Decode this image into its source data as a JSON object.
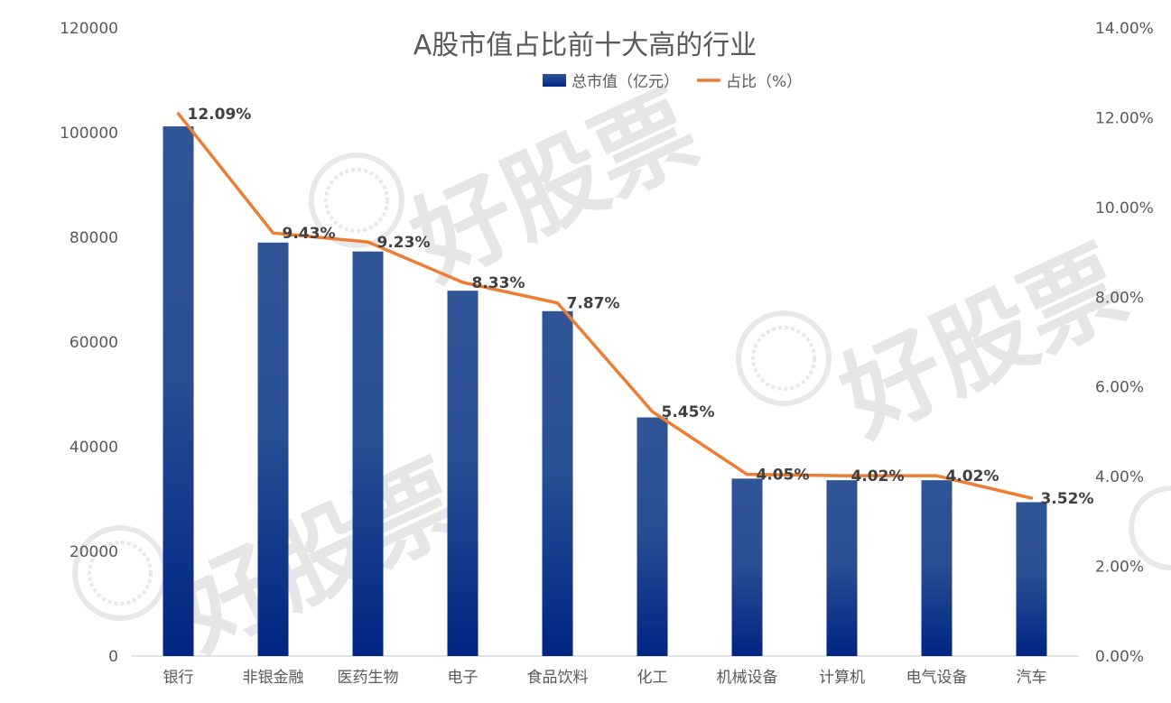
{
  "watermark": {
    "text": "好股票"
  },
  "chart_data": {
    "type": "bar",
    "title": "A股市值占比前十大高的行业",
    "categories": [
      "银行",
      "非银金融",
      "医药生物",
      "电子",
      "食品饮料",
      "化工",
      "机械设备",
      "计算机",
      "电气设备",
      "汽车"
    ],
    "series": [
      {
        "name": "总市值（亿元）",
        "type": "bar",
        "axis": "left",
        "values": [
          101200,
          79000,
          77300,
          69800,
          65900,
          45600,
          33900,
          33600,
          33600,
          29400
        ]
      },
      {
        "name": "占比（%）",
        "type": "line",
        "axis": "right",
        "values": [
          12.09,
          9.43,
          9.23,
          8.33,
          7.87,
          5.45,
          4.05,
          4.02,
          4.02,
          3.52
        ],
        "labels": [
          "12.09%",
          "9.43%",
          "9.23%",
          "8.33%",
          "7.87%",
          "5.45%",
          "4.05%",
          "4.02%",
          "4.02%",
          "3.52%"
        ]
      }
    ],
    "y_left": {
      "ylim": [
        0,
        120000
      ],
      "ticks": [
        0,
        20000,
        40000,
        60000,
        80000,
        100000,
        120000
      ],
      "tick_labels": [
        "0",
        "20000",
        "40000",
        "60000",
        "80000",
        "100000",
        "120000"
      ]
    },
    "y_right": {
      "ylim": [
        0,
        14
      ],
      "ticks": [
        0,
        2,
        4,
        6,
        8,
        10,
        12,
        14
      ],
      "tick_labels": [
        "0.00%",
        "2.00%",
        "4.00%",
        "6.00%",
        "8.00%",
        "10.00%",
        "12.00%",
        "14.00%"
      ]
    },
    "legend_position": "top-center",
    "grid": false,
    "colors": {
      "bar_top": "#2f5597",
      "bar_bottom": "#002583",
      "line": "#ed7d31",
      "axis_text": "#595959",
      "title_text": "#595959",
      "label_text": "#404040",
      "axis_line": "#d9d9d9"
    }
  }
}
